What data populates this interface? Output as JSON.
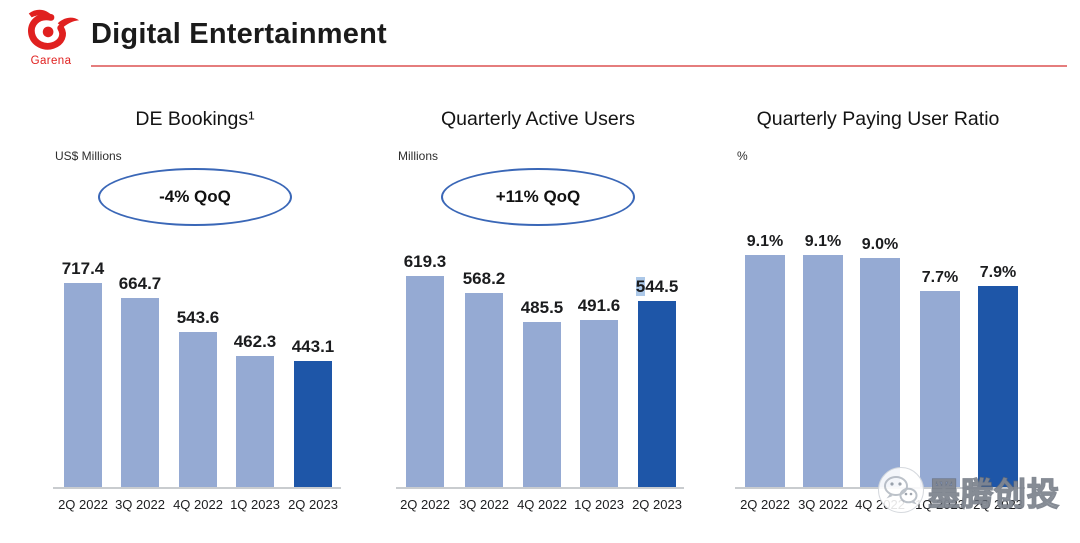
{
  "header": {
    "logo_text": "Garena",
    "title": "Digital Entertainment"
  },
  "watermark": {
    "icon": "wechat-icon",
    "text": "墨腾创投"
  },
  "colors": {
    "bar_light": "#95AAD3",
    "bar_dark": "#1E56A8",
    "oval_border": "#3A67B7",
    "underline_red": "#E06666",
    "logo_red": "#E0201F",
    "axis_gray": "#C9CCCF",
    "label_selection_bg": "#ACC8E8"
  },
  "chart_data": [
    {
      "type": "bar",
      "title": "DE Bookings¹",
      "unit": "US$ Millions",
      "annotation": "-4% QoQ",
      "categories": [
        "2Q 2022",
        "3Q 2022",
        "4Q 2022",
        "1Q 2023",
        "2Q 2023"
      ],
      "values": [
        717.4,
        664.7,
        543.6,
        462.3,
        443.1
      ],
      "value_labels": [
        "717.4",
        "664.7",
        "543.6",
        "462.3",
        "443.1"
      ],
      "highlight_index": 4,
      "ylim": [
        0,
        760
      ],
      "legend": "last bar highlighted dark blue"
    },
    {
      "type": "bar",
      "title": "Quarterly Active Users",
      "unit": "Millions",
      "annotation": "+11% QoQ",
      "categories": [
        "2Q 2022",
        "3Q 2022",
        "4Q 2022",
        "1Q 2023",
        "2Q 2023"
      ],
      "values": [
        619.3,
        568.2,
        485.5,
        491.6,
        544.5
      ],
      "value_labels": [
        "619.3",
        "568.2",
        "485.5",
        "491.6",
        "544.5"
      ],
      "label_selection": {
        "bar_index": 4,
        "char_count": 1
      },
      "highlight_index": 4,
      "ylim": [
        0,
        660
      ],
      "legend": "last bar highlighted dark blue"
    },
    {
      "type": "bar",
      "title": "Quarterly Paying User Ratio",
      "unit": "%",
      "annotation": "",
      "categories": [
        "2Q 2022",
        "3Q 2022",
        "4Q 2022",
        "1Q 2023",
        "2Q 2023"
      ],
      "values": [
        9.1,
        9.1,
        9.0,
        7.7,
        7.9
      ],
      "value_labels": [
        "9.1%",
        "9.1%",
        "9.0%",
        "7.7%",
        "7.9%"
      ],
      "highlight_index": 4,
      "ylim": [
        0,
        10
      ],
      "legend": "last bar highlighted dark blue"
    }
  ]
}
